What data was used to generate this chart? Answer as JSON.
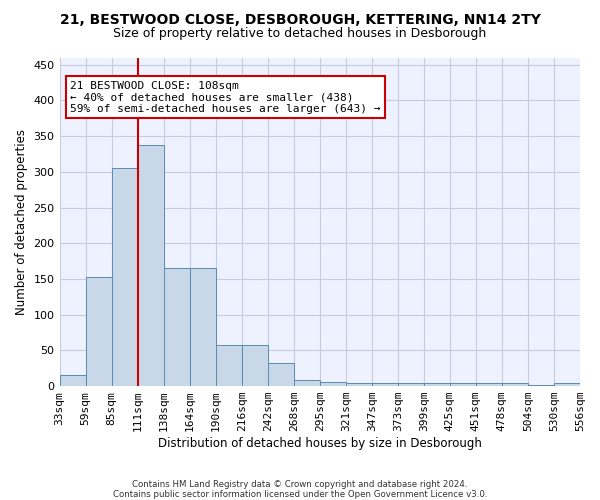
{
  "title1": "21, BESTWOOD CLOSE, DESBOROUGH, KETTERING, NN14 2TY",
  "title2": "Size of property relative to detached houses in Desborough",
  "xlabel": "Distribution of detached houses by size in Desborough",
  "ylabel": "Number of detached properties",
  "footnote1": "Contains HM Land Registry data © Crown copyright and database right 2024.",
  "footnote2": "Contains public sector information licensed under the Open Government Licence v3.0.",
  "bar_values": [
    15,
    153,
    305,
    338,
    165,
    165,
    57,
    57,
    33,
    9,
    6,
    4,
    4,
    4,
    4,
    4,
    4,
    4,
    1,
    4
  ],
  "bin_labels": [
    "33sqm",
    "59sqm",
    "85sqm",
    "111sqm",
    "138sqm",
    "164sqm",
    "190sqm",
    "216sqm",
    "242sqm",
    "268sqm",
    "295sqm",
    "321sqm",
    "347sqm",
    "373sqm",
    "399sqm",
    "425sqm",
    "451sqm",
    "478sqm",
    "504sqm",
    "530sqm",
    "556sqm"
  ],
  "bar_color": "#c8d8e8",
  "bar_edge_color": "#5a8ab5",
  "vline_x": 2.5,
  "vline_color": "#cc0000",
  "annotation_text": "21 BESTWOOD CLOSE: 108sqm\n← 40% of detached houses are smaller (438)\n59% of semi-detached houses are larger (643) →",
  "annotation_box_color": "#ffffff",
  "annotation_box_edge": "#cc0000",
  "ylim": [
    0,
    460
  ],
  "yticks": [
    0,
    50,
    100,
    150,
    200,
    250,
    300,
    350,
    400,
    450
  ],
  "grid_color": "#c8cce0",
  "bg_color": "#eef2ff"
}
